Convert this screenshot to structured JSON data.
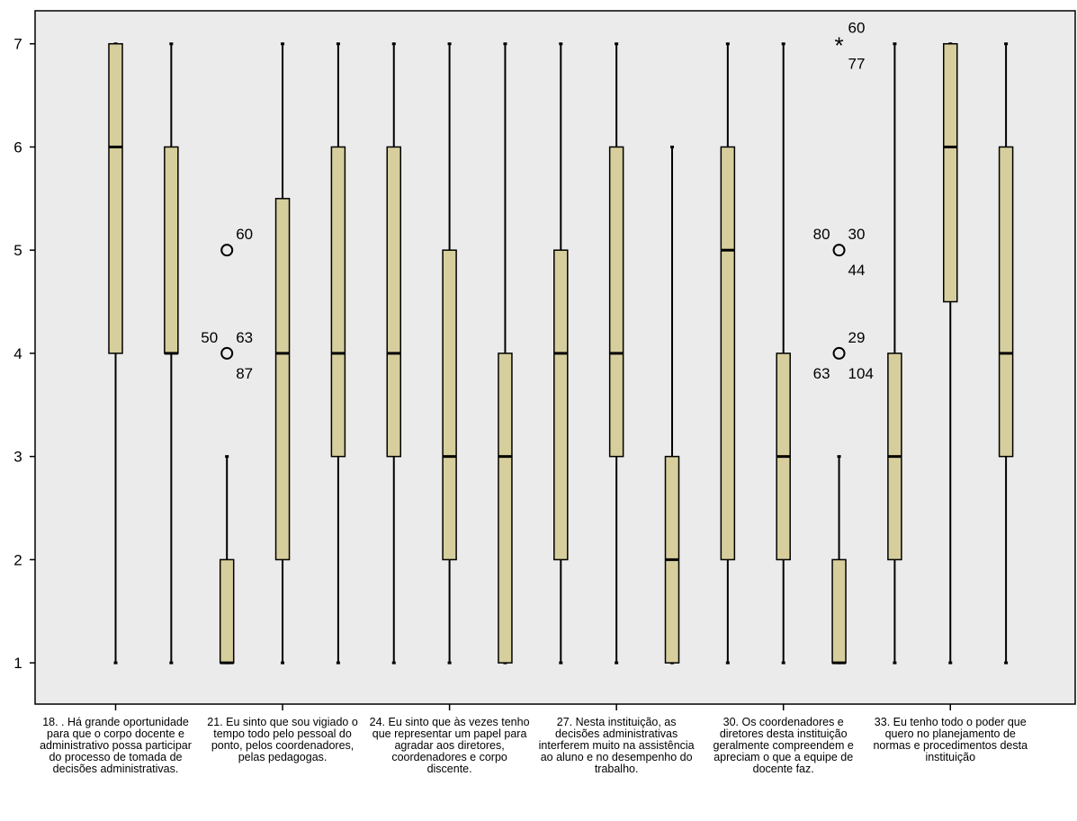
{
  "chart_data": {
    "type": "boxplot",
    "ylim": [
      0.6,
      7.32
    ],
    "yticks": [
      1,
      2,
      3,
      4,
      5,
      6,
      7
    ],
    "grid": false,
    "colors": {
      "plot_bg": "#ebebeb",
      "box_fill": "#d6ce9c",
      "stroke": "#000000"
    },
    "categories": [
      {
        "label": "18. . Há grande oportunidade para que o corpo docente e administrativo possa participar do processo de tomada de decisões administrativas."
      },
      {
        "label": "21. Eu sinto que sou vigiado o tempo todo pelo pessoal do ponto, pelos coordenadores, pelas pedagogas."
      },
      {
        "label": "24. Eu sinto que às vezes tenho que representar um papel para agradar aos diretores, coordenadores e corpo discente."
      },
      {
        "label": "27. Nesta instituição, as decisões administrativas interferem muito na assistência ao aluno e no desempenho do trabalho."
      },
      {
        "label": "30. Os coordenadores e diretores desta instituição geralmente compreendem e apreciam o que a equipe de docente faz."
      },
      {
        "label": "33. Eu tenho todo o poder que quero no planejamento de normas e procedimentos desta instituição"
      }
    ],
    "boxes": [
      {
        "min": 1,
        "q1": 4,
        "median": 6,
        "q3": 7,
        "max": 7,
        "outliers": []
      },
      {
        "min": 1,
        "q1": 4,
        "median": 4,
        "q3": 6,
        "max": 7,
        "outliers": []
      },
      {
        "min": 1,
        "q1": 1,
        "median": 1,
        "q3": 2,
        "max": 3,
        "outliers": [
          {
            "value": 5,
            "kind": "circle",
            "labels": [
              {
                "text": "60",
                "pos": "ur"
              }
            ]
          },
          {
            "value": 4,
            "kind": "circle",
            "labels": [
              {
                "text": "63",
                "pos": "ur"
              },
              {
                "text": "50",
                "pos": "ul"
              },
              {
                "text": "87",
                "pos": "lr"
              }
            ]
          }
        ]
      },
      {
        "min": 1,
        "q1": 2,
        "median": 4,
        "q3": 5.5,
        "max": 7,
        "outliers": []
      },
      {
        "min": 1,
        "q1": 3,
        "median": 4,
        "q3": 6,
        "max": 7,
        "outliers": []
      },
      {
        "min": 1,
        "q1": 3,
        "median": 4,
        "q3": 6,
        "max": 7,
        "outliers": []
      },
      {
        "min": 1,
        "q1": 2,
        "median": 3,
        "q3": 5,
        "max": 7,
        "outliers": []
      },
      {
        "min": 1,
        "q1": 1,
        "median": 3,
        "q3": 4,
        "max": 7,
        "outliers": []
      },
      {
        "min": 1,
        "q1": 2,
        "median": 4,
        "q3": 5,
        "max": 7,
        "outliers": []
      },
      {
        "min": 1,
        "q1": 3,
        "median": 4,
        "q3": 6,
        "max": 7,
        "outliers": []
      },
      {
        "min": 1,
        "q1": 1,
        "median": 2,
        "q3": 3,
        "max": 6,
        "outliers": []
      },
      {
        "min": 1,
        "q1": 2,
        "median": 5,
        "q3": 6,
        "max": 7,
        "outliers": []
      },
      {
        "min": 1,
        "q1": 2,
        "median": 3,
        "q3": 4,
        "max": 7,
        "outliers": []
      },
      {
        "min": 1,
        "q1": 1,
        "median": 1,
        "q3": 2,
        "max": 3,
        "outliers": [
          {
            "value": 7,
            "kind": "star",
            "labels": [
              {
                "text": "60",
                "pos": "ur"
              },
              {
                "text": "77",
                "pos": "lr"
              }
            ]
          },
          {
            "value": 5,
            "kind": "circle",
            "labels": [
              {
                "text": "30",
                "pos": "ur"
              },
              {
                "text": "80",
                "pos": "ul"
              },
              {
                "text": "44",
                "pos": "lr"
              }
            ]
          },
          {
            "value": 4,
            "kind": "circle",
            "labels": [
              {
                "text": "29",
                "pos": "ur"
              },
              {
                "text": "63",
                "pos": "ll"
              },
              {
                "text": "104",
                "pos": "lr"
              }
            ]
          }
        ]
      },
      {
        "min": 1,
        "q1": 2,
        "median": 3,
        "q3": 4,
        "max": 7,
        "outliers": []
      },
      {
        "min": 1,
        "q1": 4.5,
        "median": 6,
        "q3": 7,
        "max": 7,
        "outliers": []
      },
      {
        "min": 1,
        "q1": 3,
        "median": 4,
        "q3": 6,
        "max": 7,
        "outliers": []
      }
    ]
  }
}
